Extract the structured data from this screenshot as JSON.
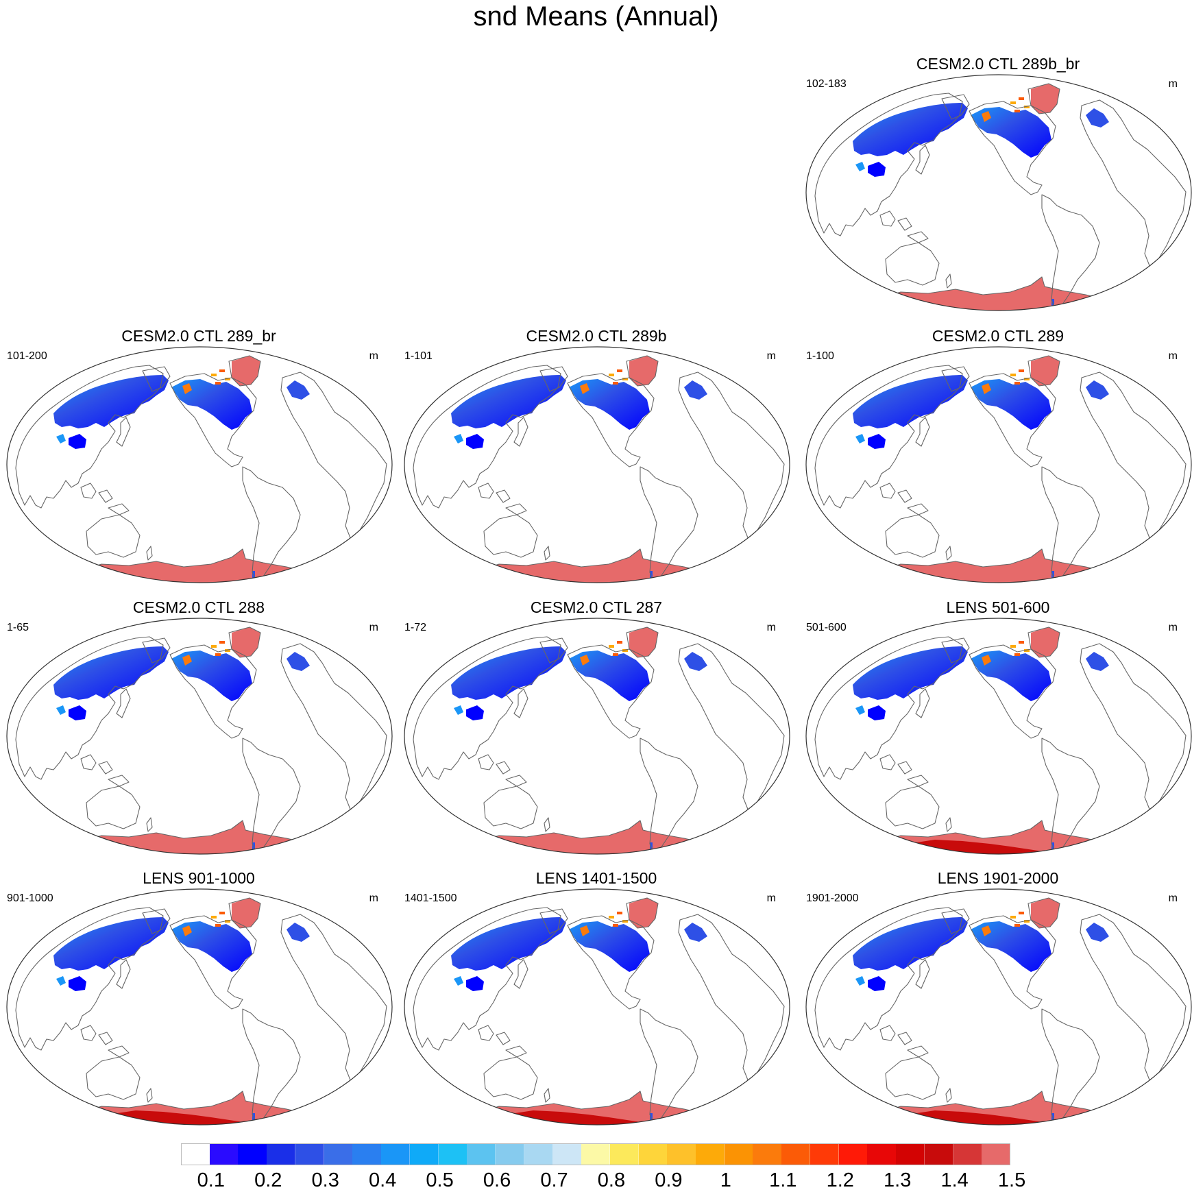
{
  "title": "snd Means (Annual)",
  "panels": [
    {
      "title": "CESM2.0 CTL 289b_br",
      "years": "102-183",
      "units": "m",
      "dataset": "ctl",
      "deep_antarctic": false
    },
    {
      "title": "CESM2.0 CTL 289_br",
      "years": "101-200",
      "units": "m",
      "dataset": "ctl",
      "deep_antarctic": false
    },
    {
      "title": "CESM2.0 CTL 289b",
      "years": "1-101",
      "units": "m",
      "dataset": "ctl",
      "deep_antarctic": false
    },
    {
      "title": "CESM2.0 CTL 289",
      "years": "1-100",
      "units": "m",
      "dataset": "ctl",
      "deep_antarctic": false
    },
    {
      "title": "CESM2.0 CTL 288",
      "years": "1-65",
      "units": "m",
      "dataset": "ctl",
      "deep_antarctic": false
    },
    {
      "title": "CESM2.0 CTL 287",
      "years": "1-72",
      "units": "m",
      "dataset": "ctl",
      "deep_antarctic": false
    },
    {
      "title": "LENS 501-600",
      "years": "501-600",
      "units": "m",
      "dataset": "lens",
      "deep_antarctic": true
    },
    {
      "title": "LENS 901-1000",
      "years": "901-1000",
      "units": "m",
      "dataset": "lens",
      "deep_antarctic": true
    },
    {
      "title": "LENS 1401-1500",
      "years": "1401-1500",
      "units": "m",
      "dataset": "lens",
      "deep_antarctic": true
    },
    {
      "title": "LENS 1901-2000",
      "years": "1901-2000",
      "units": "m",
      "dataset": "lens",
      "deep_antarctic": true
    }
  ],
  "colorbar": {
    "labels": [
      "0.1",
      "0.2",
      "0.3",
      "0.4",
      "0.5",
      "0.6",
      "0.7",
      "0.8",
      "0.9",
      "1",
      "1.1",
      "1.2",
      "1.3",
      "1.4",
      "1.5"
    ],
    "colors": [
      "#ffffff",
      "#2a0bff",
      "#0000ff",
      "#1a2fe8",
      "#2e50e6",
      "#3a6ee8",
      "#2a7ff0",
      "#1a96f7",
      "#0faaf8",
      "#1dc1f5",
      "#5cc3f0",
      "#86cbee",
      "#a9d8f2",
      "#cde6f6",
      "#fcf9a6",
      "#fce95b",
      "#fed53a",
      "#fec12a",
      "#fdaa09",
      "#fb9304",
      "#fb7b0c",
      "#fb5b07",
      "#ff3a07",
      "#ff1a07",
      "#e80707",
      "#d30303",
      "#c80b0b",
      "#d63636",
      "#e66a6a"
    ]
  },
  "colors": {
    "coast": "#666666",
    "border": "#333333"
  }
}
